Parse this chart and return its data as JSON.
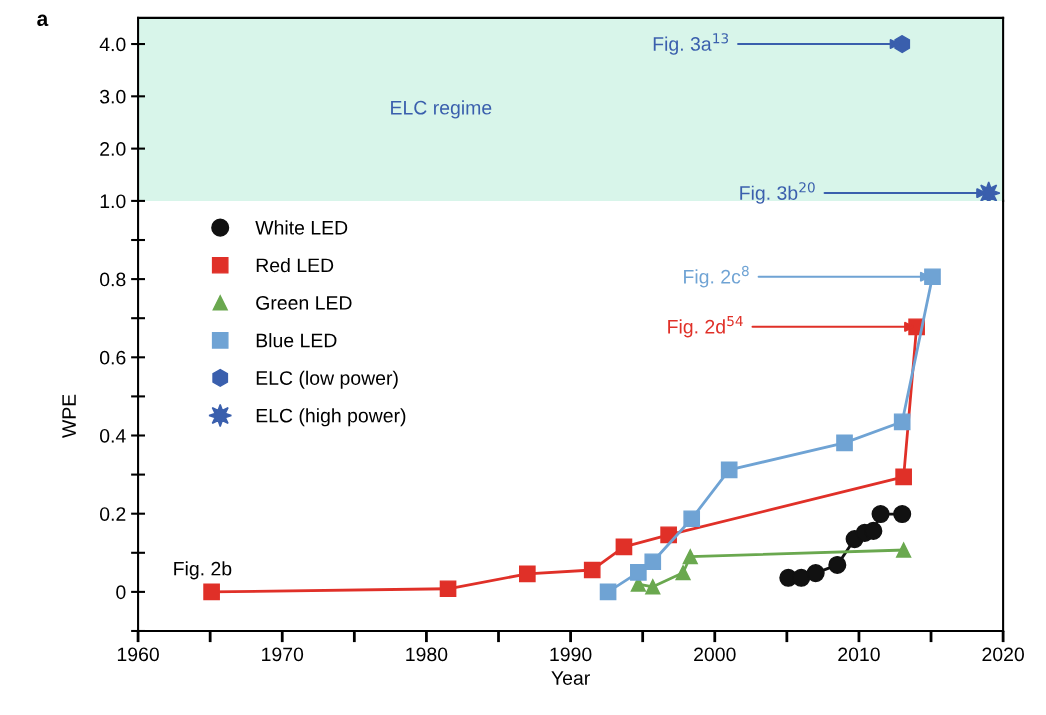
{
  "chart_data": [
    {
      "type": "scatter",
      "xlim": [
        1960,
        2020
      ],
      "ylim": [
        1.0,
        4.5
      ],
      "tick_labels": "y",
      "yticks": [
        {
          "value": 1,
          "label": "1.0"
        },
        {
          "value": 2,
          "label": "2.0"
        },
        {
          "value": 3,
          "label": "3.0"
        },
        {
          "value": 4,
          "label": "4.0"
        }
      ],
      "bands": [
        {
          "axis": "y",
          "from": 1.0,
          "to": 4.5,
          "label": "ELC regime",
          "color": "#d8f5ea"
        }
      ],
      "annotations": [
        "a",
        {
          "text": "Fig. 3a$^{13}$",
          "x": 2013.0,
          "y": 4.0
        },
        {
          "text": "Fig. 3b$^{20}$",
          "x": 2019.0,
          "y": 1.15
        }
      ],
      "legend": "bottom left",
      "series": [
        {
          "name": "ELC (low power)",
          "color": "#3a5fad",
          "x": [
            2013.0
          ],
          "values": [
            4.0
          ]
        },
        {
          "name": "ELC (high power)",
          "marker": "star",
          "color": "#3a5fad",
          "x": [
            2019.0
          ],
          "values": [
            1.15
          ]
        }
      ]
    },
    {
      "type": "line",
      "xlim": [
        1960,
        2020
      ],
      "ylim": [
        -0.1,
        1.0
      ],
      "xlabel": "Year",
      "ylabel": "WPE",
      "xticks": [
        1960,
        {
          "value": 1965,
          "label": null
        },
        1970,
        {
          "value": 1975,
          "label": null
        },
        1980,
        {
          "value": 1985,
          "label": null
        },
        1990,
        {
          "value": 1995,
          "label": null
        },
        2000,
        {
          "value": 2005,
          "label": null
        },
        2010,
        {
          "value": 2015,
          "label": null
        },
        2020
      ],
      "yticks": [
        {
          "value": -0.1,
          "label": null
        },
        0,
        {
          "value": 0.1,
          "label": null
        },
        0.2,
        {
          "value": 0.3,
          "label": null
        },
        0.4,
        {
          "value": 0.5,
          "label": null
        },
        0.6,
        {
          "value": 0.7,
          "label": null
        },
        0.8,
        {
          "value": 0.9,
          "label": null
        }
      ],
      "annotations": [
        "Fig. 2b",
        {
          "text": "Fig. 2c$^{8}$",
          "x": 2015.1,
          "y": 0.806
        },
        {
          "text": "Fig. 2d$^{54}$",
          "x": 2014.0,
          "y": 0.678
        }
      ],
      "legend": "top left",
      "series": [
        {
          "name": "White LED",
          "marker": "circle",
          "color": "#111111",
          "x": [
            2005.1,
            2006.0,
            2007.0,
            2008.5,
            2009.7,
            2010.4,
            2011.0,
            2011.5,
            2013.0
          ],
          "values": [
            0.036,
            0.036,
            0.048,
            0.069,
            0.135,
            0.151,
            0.156,
            0.199,
            0.199
          ]
        },
        {
          "name": "Red LED",
          "marker": "square",
          "color": "#e03028",
          "x": [
            1965.1,
            1981.5,
            1987.0,
            1991.5,
            1993.7,
            1996.8,
            2013.1,
            2014.0
          ],
          "values": [
            0.0,
            0.008,
            0.046,
            0.056,
            0.115,
            0.146,
            0.294,
            0.678
          ]
        },
        {
          "name": "Green LED",
          "marker": "triangle",
          "color": "#6aa84f",
          "x": [
            1994.7,
            1995.7,
            1997.8,
            1998.3,
            2013.1
          ],
          "values": [
            0.02,
            0.013,
            0.049,
            0.09,
            0.107
          ]
        },
        {
          "name": "Blue LED",
          "marker": "square",
          "color": "#6fa3d4",
          "x": [
            1992.6,
            1994.7,
            1995.7,
            1998.4,
            2001.0,
            2009.0,
            2013.0,
            2015.1
          ],
          "values": [
            0.0,
            0.05,
            0.077,
            0.187,
            0.312,
            0.381,
            0.435,
            0.806
          ]
        }
      ]
    }
  ]
}
